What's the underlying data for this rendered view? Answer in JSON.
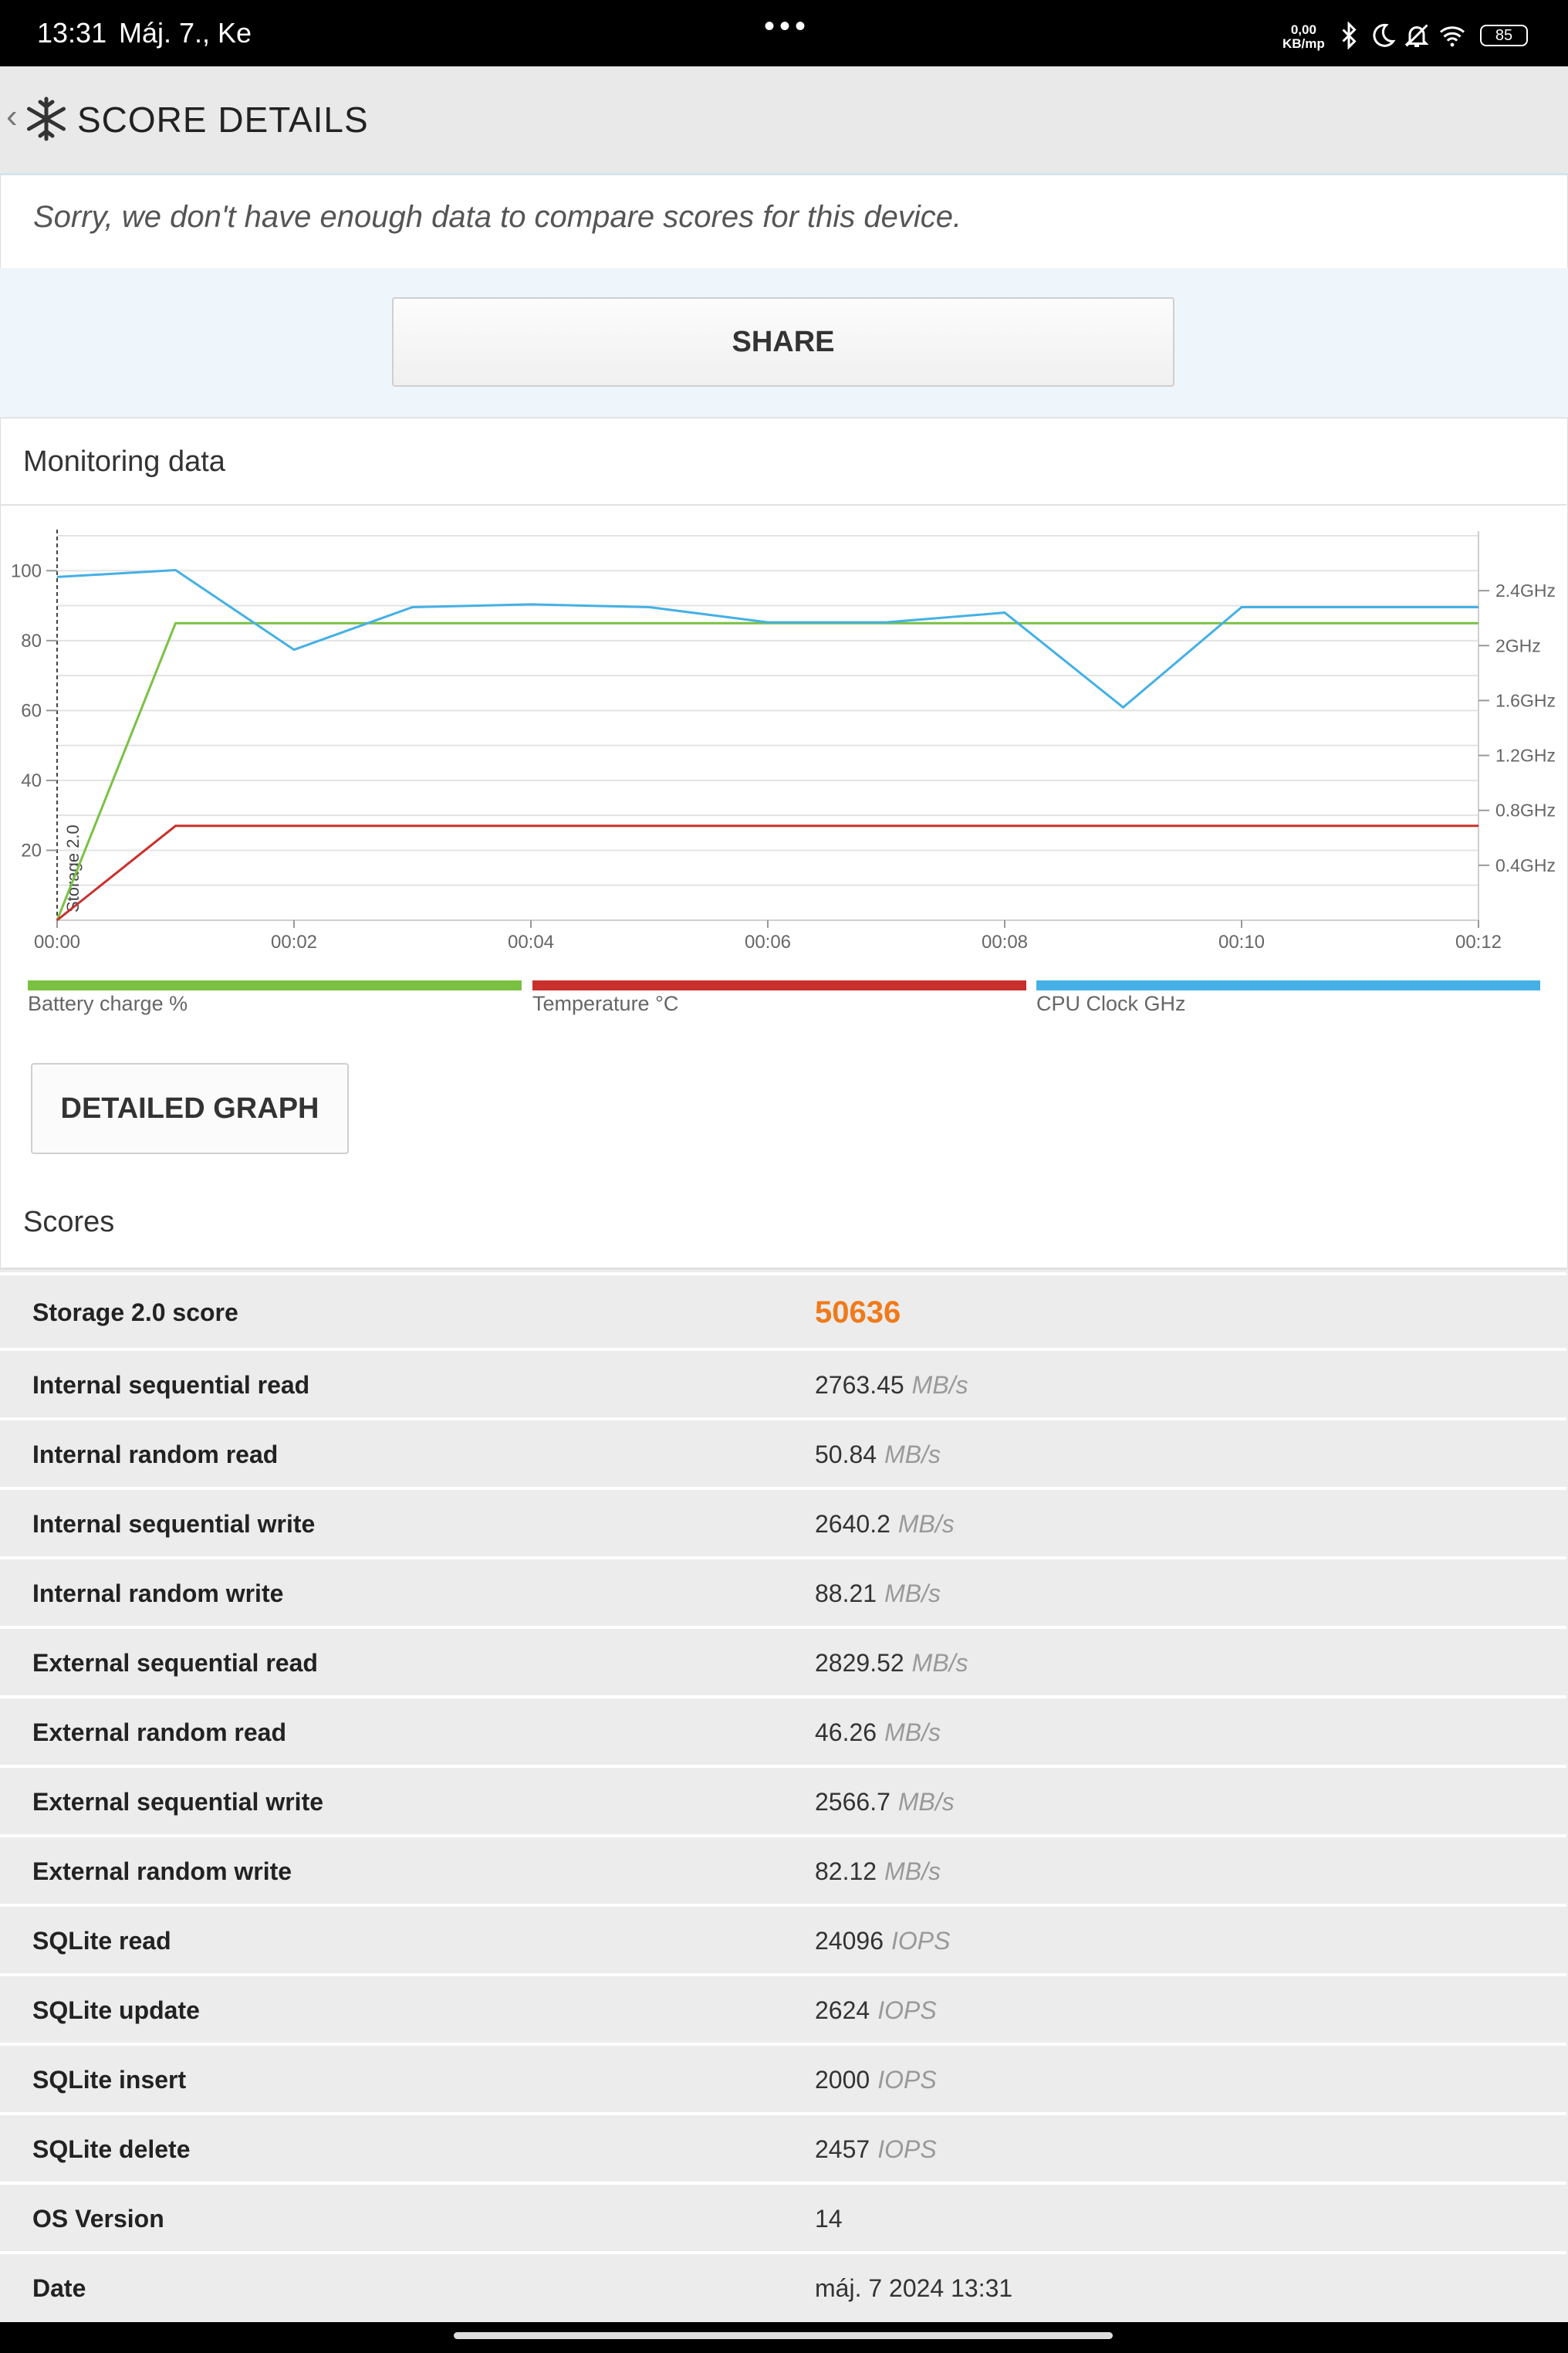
{
  "status": {
    "time": "13:31",
    "date": "Máj. 7., Ke",
    "net_speed": "0,00",
    "net_unit": "KB/mp",
    "battery": "85"
  },
  "appbar": {
    "title": "SCORE DETAILS"
  },
  "sorry_text": "Sorry, we don't have enough data to compare scores for this device.",
  "share_label": "SHARE",
  "monitoring": {
    "title": "Monitoring data",
    "detailed_label": "DETAILED GRAPH"
  },
  "chart_data": {
    "type": "line",
    "x": [
      "00:00",
      "00:01",
      "00:02",
      "00:03",
      "00:04",
      "00:05",
      "00:06",
      "00:07",
      "00:08",
      "00:09",
      "00:10",
      "00:11",
      "00:12"
    ],
    "x_ticks": [
      "00:00",
      "00:02",
      "00:04",
      "00:06",
      "00:08",
      "00:10",
      "00:12"
    ],
    "y_left_ticks": [
      "20",
      "40",
      "60",
      "80",
      "100"
    ],
    "y_right_ticks": [
      "0.4GHz",
      "0.8GHz",
      "1.2GHz",
      "1.6GHz",
      "2GHz",
      "2.4GHz"
    ],
    "ylim_left": [
      0,
      110
    ],
    "ylim_right": [
      0,
      2.8
    ],
    "annotation": "Storage 2.0",
    "grid": true,
    "series": [
      {
        "name": "Battery charge %",
        "color": "#7ac143",
        "axis": "left",
        "values": [
          0,
          85,
          85,
          85,
          85,
          85,
          85,
          85,
          85,
          85,
          85,
          85,
          85
        ]
      },
      {
        "name": "Temperature °C",
        "color": "#c9302c",
        "axis": "left",
        "values": [
          0,
          27,
          27,
          27,
          27,
          27,
          27,
          27,
          27,
          27,
          27,
          27,
          27
        ]
      },
      {
        "name": "CPU Clock GHz",
        "color": "#45b0e5",
        "axis": "right",
        "values": [
          2.5,
          2.55,
          1.97,
          2.28,
          2.3,
          2.28,
          2.17,
          2.17,
          2.24,
          1.55,
          2.28,
          2.28,
          2.28
        ]
      }
    ]
  },
  "scores": {
    "title": "Scores",
    "rows": [
      {
        "label": "Storage 2.0 score",
        "value": "50636",
        "unit": ""
      },
      {
        "label": "Internal sequential read",
        "value": "2763.45",
        "unit": "MB/s"
      },
      {
        "label": "Internal random read",
        "value": "50.84",
        "unit": "MB/s"
      },
      {
        "label": "Internal sequential write",
        "value": "2640.2",
        "unit": "MB/s"
      },
      {
        "label": "Internal random write",
        "value": "88.21",
        "unit": "MB/s"
      },
      {
        "label": "External sequential read",
        "value": "2829.52",
        "unit": "MB/s"
      },
      {
        "label": "External random read",
        "value": "46.26",
        "unit": "MB/s"
      },
      {
        "label": "External sequential write",
        "value": "2566.7",
        "unit": "MB/s"
      },
      {
        "label": "External random write",
        "value": "82.12",
        "unit": "MB/s"
      },
      {
        "label": "SQLite read",
        "value": "24096",
        "unit": "IOPS"
      },
      {
        "label": "SQLite update",
        "value": "2624",
        "unit": "IOPS"
      },
      {
        "label": "SQLite insert",
        "value": "2000",
        "unit": "IOPS"
      },
      {
        "label": "SQLite delete",
        "value": "2457",
        "unit": "IOPS"
      },
      {
        "label": "OS Version",
        "value": "14",
        "unit": ""
      },
      {
        "label": "Date",
        "value": "máj. 7 2024 13:31",
        "unit": ""
      }
    ]
  }
}
